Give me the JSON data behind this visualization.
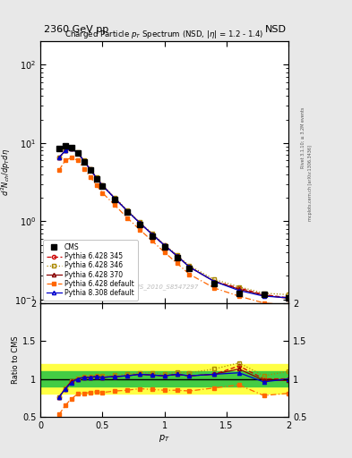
{
  "title_top_left": "2360 GeV pp",
  "title_top_right": "NSD",
  "main_title": "Charged Particle p$_T$ Spectrum (NSD, |$\\eta$| = 1.2 - 1.4)",
  "watermark": "CMS_2010_S8547297",
  "right_label1": "Rivet 3.1.10; ≥ 3.2M events",
  "right_label2": "mcplots.cern.ch [arXiv:1306.3436]",
  "pt_values": [
    0.15,
    0.2,
    0.25,
    0.3,
    0.35,
    0.4,
    0.45,
    0.5,
    0.6,
    0.7,
    0.8,
    0.9,
    1.0,
    1.1,
    1.2,
    1.4,
    1.6,
    1.8,
    2.0
  ],
  "cms_y": [
    8.5,
    9.2,
    8.8,
    7.5,
    5.8,
    4.5,
    3.5,
    2.8,
    1.9,
    1.3,
    0.9,
    0.65,
    0.47,
    0.34,
    0.25,
    0.16,
    0.12,
    0.115,
    0.105
  ],
  "p6_345_y": [
    6.5,
    8.0,
    8.5,
    7.5,
    5.9,
    4.6,
    3.6,
    2.85,
    1.95,
    1.35,
    0.95,
    0.68,
    0.49,
    0.36,
    0.26,
    0.17,
    0.14,
    0.115,
    0.105
  ],
  "p6_346_y": [
    6.5,
    8.1,
    8.5,
    7.6,
    6.0,
    4.65,
    3.65,
    2.9,
    2.0,
    1.38,
    0.97,
    0.7,
    0.5,
    0.37,
    0.27,
    0.18,
    0.145,
    0.12,
    0.115
  ],
  "p6_370_y": [
    6.5,
    8.0,
    8.5,
    7.5,
    5.9,
    4.6,
    3.6,
    2.85,
    1.95,
    1.35,
    0.95,
    0.68,
    0.49,
    0.36,
    0.26,
    0.17,
    0.135,
    0.113,
    0.103
  ],
  "p6_default_y": [
    4.5,
    6.0,
    6.5,
    6.0,
    4.7,
    3.7,
    2.9,
    2.3,
    1.6,
    1.1,
    0.78,
    0.56,
    0.4,
    0.29,
    0.21,
    0.14,
    0.11,
    0.09,
    0.085
  ],
  "p8_default_y": [
    6.5,
    8.0,
    8.4,
    7.5,
    5.9,
    4.6,
    3.6,
    2.85,
    1.95,
    1.35,
    0.95,
    0.68,
    0.49,
    0.36,
    0.26,
    0.17,
    0.13,
    0.11,
    0.105
  ],
  "ratio_345": [
    0.76,
    0.87,
    0.97,
    1.0,
    1.02,
    1.02,
    1.03,
    1.02,
    1.03,
    1.04,
    1.06,
    1.05,
    1.04,
    1.06,
    1.04,
    1.06,
    1.17,
    1.0,
    1.0
  ],
  "ratio_346": [
    0.76,
    0.88,
    0.97,
    1.01,
    1.03,
    1.03,
    1.04,
    1.04,
    1.05,
    1.06,
    1.08,
    1.08,
    1.06,
    1.09,
    1.08,
    1.13,
    1.21,
    1.04,
    1.1
  ],
  "ratio_370": [
    0.76,
    0.87,
    0.97,
    1.0,
    1.02,
    1.02,
    1.03,
    1.02,
    1.03,
    1.04,
    1.06,
    1.05,
    1.04,
    1.06,
    1.04,
    1.06,
    1.13,
    0.98,
    0.98
  ],
  "ratio_default": [
    0.53,
    0.65,
    0.74,
    0.8,
    0.81,
    0.82,
    0.83,
    0.82,
    0.84,
    0.85,
    0.87,
    0.86,
    0.85,
    0.85,
    0.84,
    0.88,
    0.92,
    0.78,
    0.81
  ],
  "ratio_p8": [
    0.76,
    0.87,
    0.95,
    1.0,
    1.02,
    1.02,
    1.03,
    1.02,
    1.03,
    1.04,
    1.06,
    1.05,
    1.04,
    1.06,
    1.04,
    1.06,
    1.08,
    0.96,
    1.0
  ],
  "green_band_lo": 0.9,
  "green_band_hi": 1.1,
  "yellow_band_lo": 0.8,
  "yellow_band_hi": 1.2,
  "colors": {
    "cms": "#000000",
    "p6_345": "#cc0000",
    "p6_346": "#aa8800",
    "p6_370": "#880000",
    "p6_default": "#ff6600",
    "p8_default": "#0000cc"
  },
  "ylim_main": [
    0.09,
    200
  ],
  "ylim_ratio": [
    0.5,
    2.0
  ],
  "xlim": [
    0.0,
    2.0
  ],
  "bg_color": "#e8e8e8",
  "plot_bg": "#ffffff"
}
